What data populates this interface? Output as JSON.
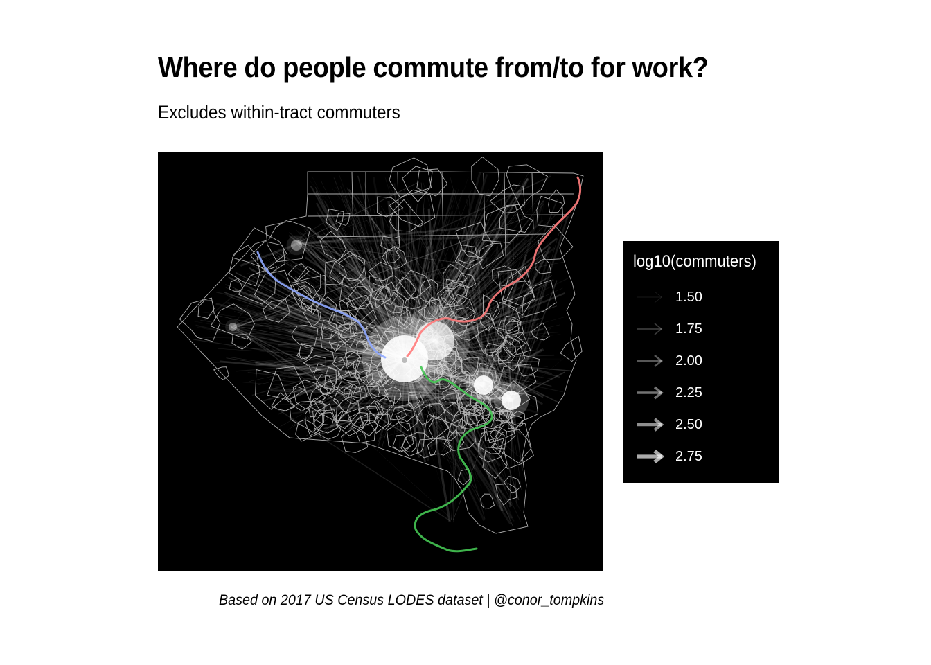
{
  "title": "Where do people commute from/to for work?",
  "subtitle": "Excludes within-tract commuters",
  "caption": "Based on 2017 US Census LODES dataset | @conor_tompkins",
  "map": {
    "background_color": "#000000",
    "boundary_color": "#cfcfcf",
    "flow_color": "#ffffff",
    "rivers": [
      {
        "id": "ohio-river",
        "color": "#8fa8ff"
      },
      {
        "id": "allegheny-river",
        "color": "#ff7a7a"
      },
      {
        "id": "monongahela-river",
        "color": "#45c653"
      }
    ]
  },
  "legend": {
    "title": "log10(commuters)",
    "items": [
      {
        "label": "1.50",
        "value": 1.5
      },
      {
        "label": "1.75",
        "value": 1.75
      },
      {
        "label": "2.00",
        "value": 2.0
      },
      {
        "label": "2.25",
        "value": 2.25
      },
      {
        "label": "2.50",
        "value": 2.5
      },
      {
        "label": "2.75",
        "value": 2.75
      }
    ]
  }
}
